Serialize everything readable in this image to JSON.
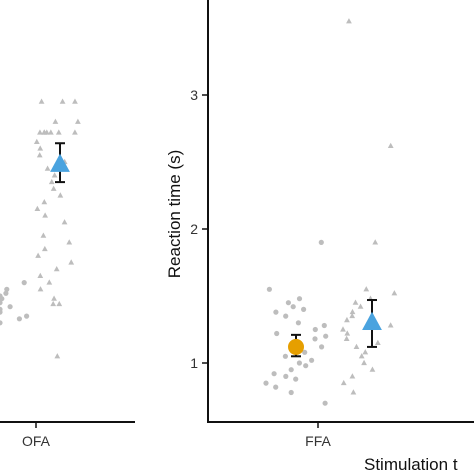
{
  "chart_data": [
    {
      "type": "scatter",
      "panel": "left",
      "categories": [
        "OFA"
      ],
      "xlabel": "",
      "ylabel": "",
      "raw_points": {
        "marker_color": "#bdbdbd",
        "circles": [
          1.6,
          1.5,
          1.55,
          1.45,
          1.48,
          1.42,
          1.4,
          1.38,
          1.52,
          1.35,
          1.33,
          1.3
        ],
        "triangles": [
          2.95,
          2.95,
          2.95,
          2.8,
          2.8,
          2.72,
          2.72,
          2.72,
          2.72,
          2.72,
          2.72,
          2.72,
          2.65,
          2.6,
          2.55,
          2.5,
          2.45,
          2.4,
          2.35,
          2.3,
          2.25,
          2.2,
          2.15,
          2.1,
          2.05,
          1.95,
          1.9,
          1.85,
          1.8,
          1.75,
          1.7,
          1.65,
          1.6,
          1.55,
          1.48,
          1.44,
          1.44,
          1.05
        ]
      },
      "series": [
        {
          "marker": "triangle",
          "color": "#4aa3df",
          "values": [
            2.48
          ],
          "error": [
            2.35,
            2.64
          ]
        }
      ]
    },
    {
      "type": "scatter",
      "panel": "right",
      "categories": [
        "FFA"
      ],
      "xlabel": "Stimulation t",
      "ylabel": "Reaction time (s)",
      "yticks": [
        1,
        2,
        3
      ],
      "raw_points": {
        "marker_color": "#bdbdbd",
        "circles": [
          1.9,
          1.55,
          1.48,
          1.45,
          1.42,
          1.4,
          1.38,
          1.35,
          1.3,
          1.28,
          1.25,
          1.22,
          1.2,
          1.18,
          1.15,
          1.12,
          1.1,
          1.08,
          1.05,
          1.02,
          1.0,
          0.98,
          0.95,
          0.92,
          0.9,
          0.88,
          0.85,
          0.82,
          0.78,
          0.7
        ],
        "triangles": [
          3.55,
          2.62,
          1.9,
          1.55,
          1.52,
          1.48,
          1.45,
          1.42,
          1.38,
          1.35,
          1.32,
          1.28,
          1.25,
          1.22,
          1.18,
          1.15,
          1.12,
          1.08,
          1.05,
          1.0,
          0.95,
          0.9,
          0.85,
          0.78
        ]
      },
      "series": [
        {
          "marker": "circle",
          "color": "#e69f00",
          "values": [
            1.12
          ],
          "error": [
            1.05,
            1.21
          ]
        },
        {
          "marker": "triangle",
          "color": "#4aa3df",
          "values": [
            1.3
          ],
          "error": [
            1.12,
            1.47
          ]
        }
      ]
    }
  ]
}
